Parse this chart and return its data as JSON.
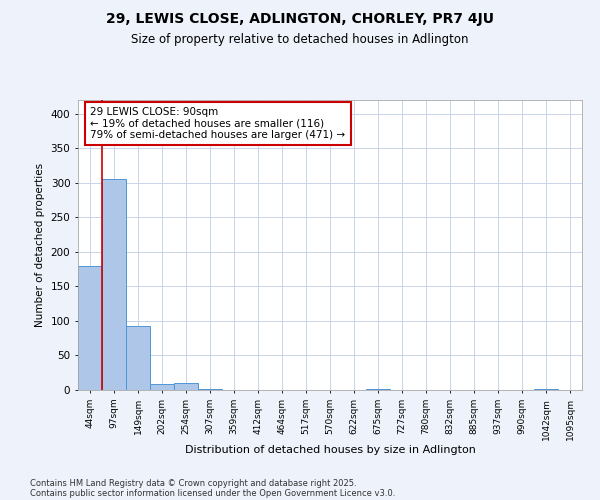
{
  "title1": "29, LEWIS CLOSE, ADLINGTON, CHORLEY, PR7 4JU",
  "title2": "Size of property relative to detached houses in Adlington",
  "xlabel": "Distribution of detached houses by size in Adlington",
  "ylabel": "Number of detached properties",
  "categories": [
    "44sqm",
    "97sqm",
    "149sqm",
    "202sqm",
    "254sqm",
    "307sqm",
    "359sqm",
    "412sqm",
    "464sqm",
    "517sqm",
    "570sqm",
    "622sqm",
    "675sqm",
    "727sqm",
    "780sqm",
    "832sqm",
    "885sqm",
    "937sqm",
    "990sqm",
    "1042sqm",
    "1095sqm"
  ],
  "values": [
    180,
    305,
    93,
    8,
    10,
    2,
    0,
    0,
    0,
    0,
    0,
    0,
    2,
    0,
    0,
    0,
    0,
    0,
    0,
    2,
    0
  ],
  "bar_color": "#aec6e8",
  "bar_edge_color": "#4c96d7",
  "annotation_line_color": "#cc0000",
  "annotation_box_text": "29 LEWIS CLOSE: 90sqm\n← 19% of detached houses are smaller (116)\n79% of semi-detached houses are larger (471) →",
  "footnote1": "Contains HM Land Registry data © Crown copyright and database right 2025.",
  "footnote2": "Contains public sector information licensed under the Open Government Licence v3.0.",
  "background_color": "#eef2fa",
  "plot_bg_color": "#ffffff",
  "grid_color": "#c8d4e8",
  "ylim": [
    0,
    420
  ],
  "yticks": [
    0,
    50,
    100,
    150,
    200,
    250,
    300,
    350,
    400
  ]
}
